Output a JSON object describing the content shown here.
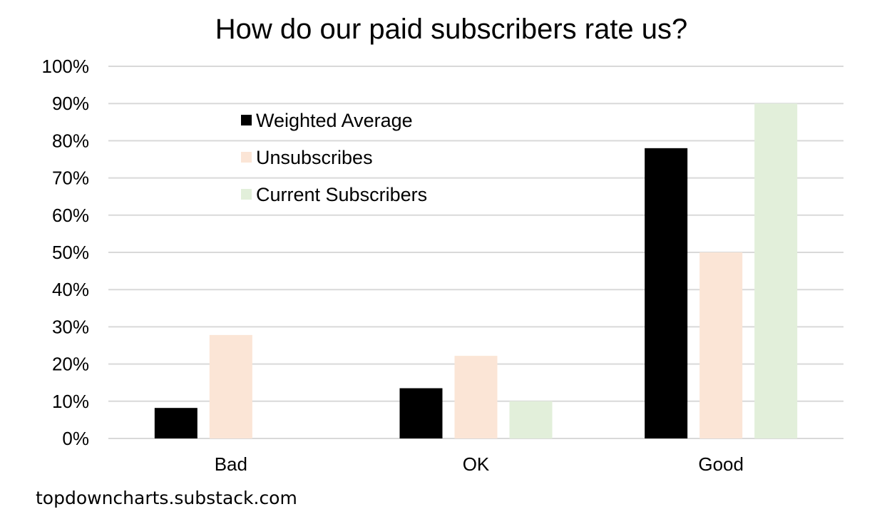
{
  "chart_data": {
    "type": "bar",
    "title": "How do our paid subscribers rate us?",
    "categories": [
      "Bad",
      "OK",
      "Good"
    ],
    "series": [
      {
        "name": "Weighted Average",
        "color": "#000000",
        "values": [
          8.2,
          13.5,
          78
        ]
      },
      {
        "name": "Unsubscribes",
        "color": "#fbe5d6",
        "values": [
          27.8,
          22.2,
          50
        ]
      },
      {
        "name": "Current Subscribers",
        "color": "#e2efda",
        "values": [
          0,
          10,
          90
        ]
      }
    ],
    "ylim": [
      0,
      100
    ],
    "y_ticks": [
      "0%",
      "10%",
      "20%",
      "30%",
      "40%",
      "50%",
      "60%",
      "70%",
      "80%",
      "90%",
      "100%"
    ],
    "xlabel": "",
    "ylabel": "",
    "grid": true,
    "legend_position": "upper-left inside plot"
  },
  "source": "topdowncharts.substack.com",
  "colors": {
    "gridline": "#d9d9d9",
    "axis": "#d9d9d9",
    "text": "#000000"
  }
}
